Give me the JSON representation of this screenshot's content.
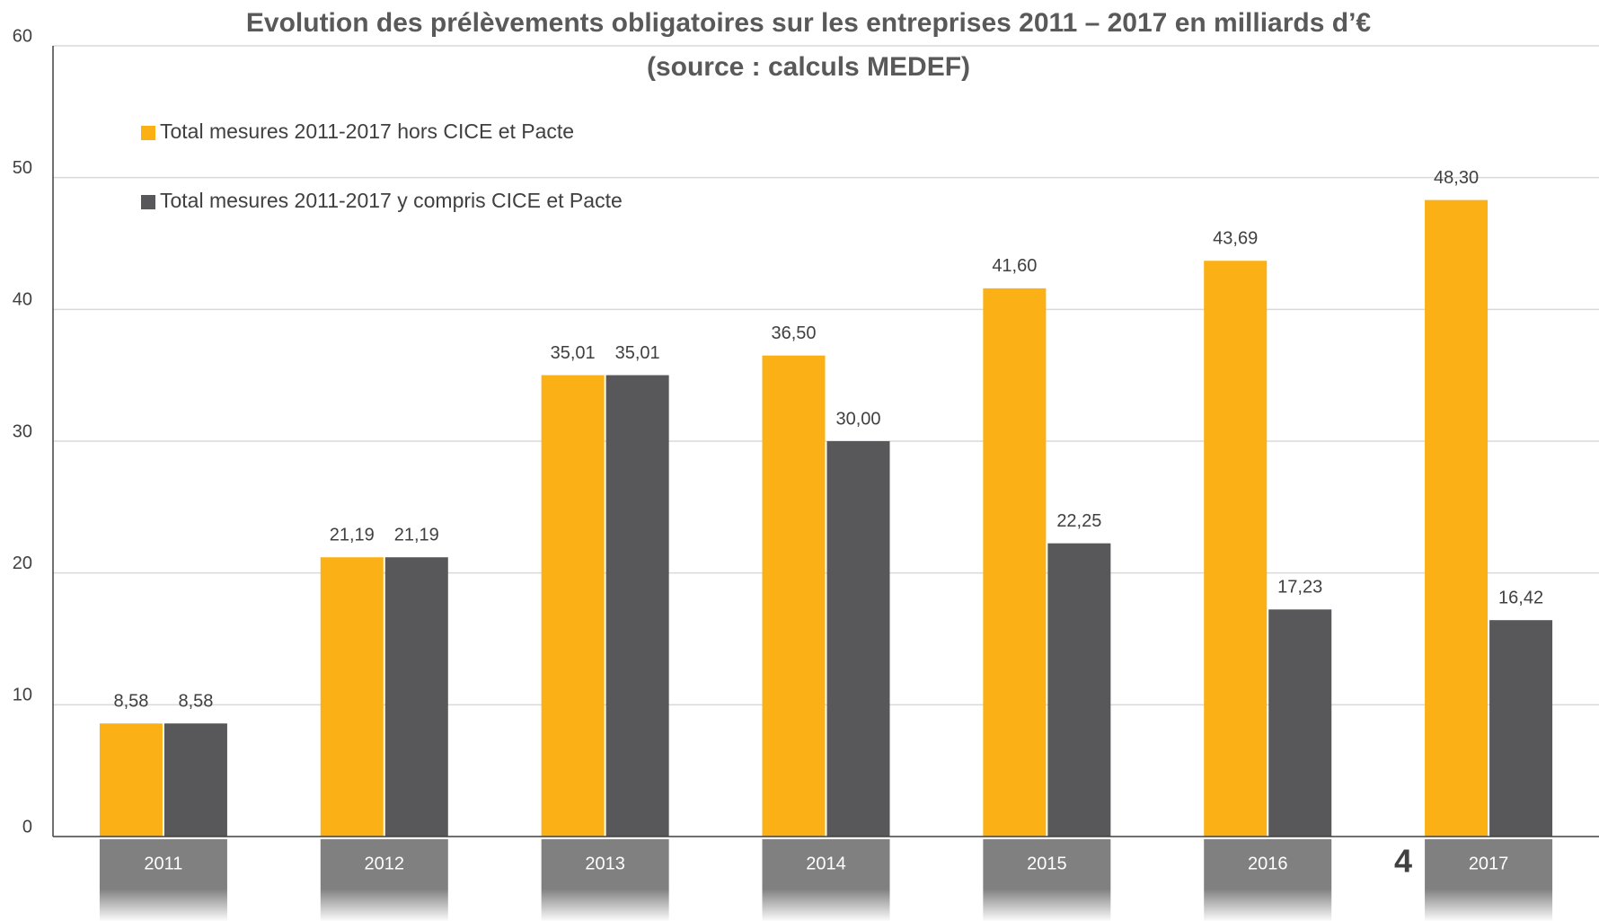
{
  "chart_data": {
    "type": "bar",
    "title": "Evolution des prélèvements obligatoires sur les entreprises 2011 – 2017 en milliards d’€",
    "subtitle": "(source : calculs MEDEF)",
    "categories": [
      "2011",
      "2012",
      "2013",
      "2014",
      "2015",
      "2016",
      "2017"
    ],
    "series": [
      {
        "name": "Total mesures 2011-2017 hors CICE et Pacte",
        "color": "#fbb116",
        "values": [
          8.58,
          21.19,
          35.01,
          36.5,
          41.6,
          43.69,
          48.3
        ],
        "value_labels": [
          "8,58",
          "21,19",
          "35,01",
          "36,50",
          "41,60",
          "43,69",
          "48,30"
        ]
      },
      {
        "name": "Total mesures 2011-2017 y compris CICE et Pacte",
        "color": "#58585a",
        "values": [
          8.58,
          21.19,
          35.01,
          30.0,
          22.25,
          17.23,
          16.42
        ],
        "value_labels": [
          "8,58",
          "21,19",
          "35,01",
          "30,00",
          "22,25",
          "17,23",
          "16,42"
        ]
      }
    ],
    "ylim": [
      0,
      60
    ],
    "yticks": [
      0,
      10,
      20,
      30,
      40,
      50,
      60
    ],
    "grid": true,
    "legend": "top-left",
    "annotations": [
      "4"
    ]
  }
}
